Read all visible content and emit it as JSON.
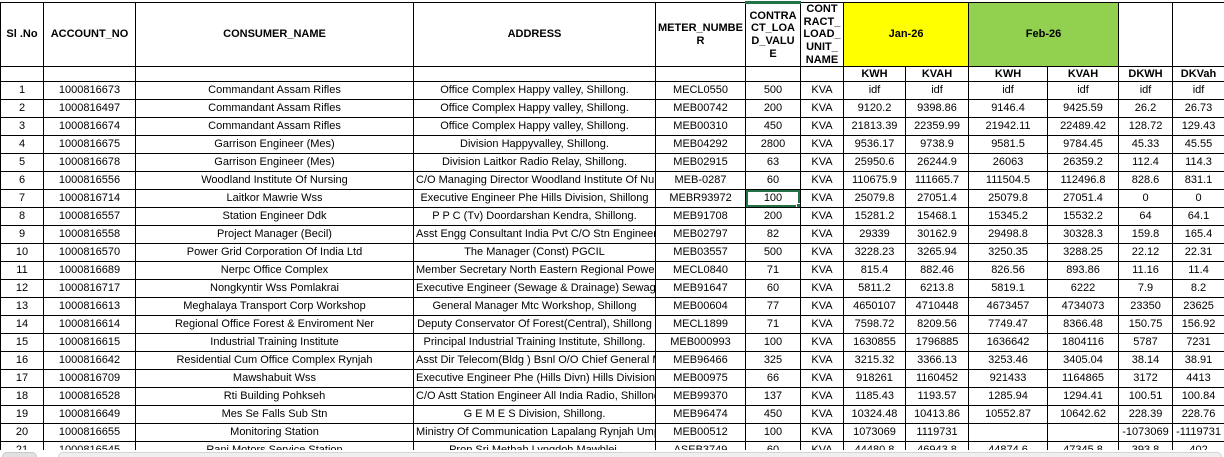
{
  "colors": {
    "jan_header_bg": "#FFFF00",
    "feb_header_bg": "#92D050",
    "selection_border": "#217346",
    "grid_border": "#000000"
  },
  "selection": {
    "row_index": 6,
    "column": "load"
  },
  "table": {
    "headers": {
      "sl": "Sl .No",
      "account": "ACCOUNT_NO",
      "consumer": "CONSUMER_NAME",
      "address": "ADDRESS",
      "meter": "METER_NUMBER",
      "load": "CONTRACT_LOAD_VALUE",
      "unit": "CONTRACT_LOAD_UNIT_NAME",
      "jan": "Jan-26",
      "feb": "Feb-26",
      "kwh": "KWH",
      "kvah": "KVAH",
      "dkwh": "DKWH",
      "dkvah": "DKVah"
    },
    "columns": [
      "sl",
      "account",
      "consumer",
      "address",
      "meter",
      "load",
      "unit",
      "jan_kwh",
      "jan_kvah",
      "feb_kwh",
      "feb_kvah",
      "dkwh",
      "dkvah"
    ],
    "rows": [
      {
        "sl": "1",
        "account": "1000816673",
        "consumer": "Commandant Assam Rifles",
        "address": "Office Complex Happy valley, Shillong.",
        "meter": "MECL0550",
        "load": "500",
        "unit": "KVA",
        "jan_kwh": "idf",
        "jan_kvah": "idf",
        "feb_kwh": "idf",
        "feb_kvah": "idf",
        "dkwh": "idf",
        "dkvah": "idf"
      },
      {
        "sl": "2",
        "account": "1000816497",
        "consumer": "Commandant Assam Rifles",
        "address": "Office Complex Happy valley, Shillong.",
        "meter": "MEB00742",
        "load": "200",
        "unit": "KVA",
        "jan_kwh": "9120.2",
        "jan_kvah": "9398.86",
        "feb_kwh": "9146.4",
        "feb_kvah": "9425.59",
        "dkwh": "26.2",
        "dkvah": "26.73"
      },
      {
        "sl": "3",
        "account": "1000816674",
        "consumer": "Commandant Assam Rifles",
        "address": "Office Complex Happy valley, Shillong.",
        "meter": "MEB00310",
        "load": "450",
        "unit": "KVA",
        "jan_kwh": "21813.39",
        "jan_kvah": "22359.99",
        "feb_kwh": "21942.11",
        "feb_kvah": "22489.42",
        "dkwh": "128.72",
        "dkvah": "129.43"
      },
      {
        "sl": "4",
        "account": "1000816675",
        "consumer": "Garrison Engineer (Mes)",
        "address": "Division Happyvalley, Shillong.",
        "meter": "MEB04292",
        "load": "2800",
        "unit": "KVA",
        "jan_kwh": "9536.17",
        "jan_kvah": "9738.9",
        "feb_kwh": "9581.5",
        "feb_kvah": "9784.45",
        "dkwh": "45.33",
        "dkvah": "45.55"
      },
      {
        "sl": "5",
        "account": "1000816678",
        "consumer": "Garrison Engineer (Mes)",
        "address": "Division Laitkor Radio Relay, Shillong.",
        "meter": "MEB02915",
        "load": "63",
        "unit": "KVA",
        "jan_kwh": "25950.6",
        "jan_kvah": "26244.9",
        "feb_kwh": "26063",
        "feb_kvah": "26359.2",
        "dkwh": "112.4",
        "dkvah": "114.3"
      },
      {
        "sl": "6",
        "account": "1000816556",
        "consumer": "Woodland Institute Of Nursing",
        "address": "C/O Managing Director Woodland Institute Of Nursing,",
        "meter": "MEB-0287",
        "load": "60",
        "unit": "KVA",
        "jan_kwh": "110675.9",
        "jan_kvah": "111665.7",
        "feb_kwh": "111504.5",
        "feb_kvah": "112496.8",
        "dkwh": "828.6",
        "dkvah": "831.1"
      },
      {
        "sl": "7",
        "account": "1000816714",
        "consumer": "Laitkor Mawrie Wss",
        "address": "Executive Engineer Phe Hills Division, Shillong",
        "meter": "MEBR93972",
        "load": "100",
        "unit": "KVA",
        "jan_kwh": "25079.8",
        "jan_kvah": "27051.4",
        "feb_kwh": "25079.8",
        "feb_kvah": "27051.4",
        "dkwh": "0",
        "dkvah": "0"
      },
      {
        "sl": "8",
        "account": "1000816557",
        "consumer": "Station Engineer Ddk",
        "address": "P P C (Tv) Doordarshan Kendra, Shillong.",
        "meter": "MEB91708",
        "load": "200",
        "unit": "KVA",
        "jan_kwh": "15281.2",
        "jan_kvah": "15468.1",
        "feb_kwh": "15345.2",
        "feb_kvah": "15532.2",
        "dkwh": "64",
        "dkvah": "64.1"
      },
      {
        "sl": "9",
        "account": "1000816558",
        "consumer": "Project Manager (Becil)",
        "address": "Asst Engg Consultant India Pvt C/O Stn Engineer Ddk Laitkor, Shillong. #",
        "meter": "MEB02797",
        "load": "82",
        "unit": "KVA",
        "jan_kwh": "29339",
        "jan_kvah": "30162.9",
        "feb_kwh": "29498.8",
        "feb_kvah": "30328.3",
        "dkwh": "159.8",
        "dkvah": "165.4"
      },
      {
        "sl": "10",
        "account": "1000816570",
        "consumer": "Power Grid Corporation Of India Ltd",
        "address": "The Manager (Const) PGCIL",
        "meter": "MEB03557",
        "load": "500",
        "unit": "KVA",
        "jan_kwh": "3228.23",
        "jan_kvah": "3265.94",
        "feb_kwh": "3250.35",
        "feb_kvah": "3288.25",
        "dkwh": "22.12",
        "dkvah": "22.31"
      },
      {
        "sl": "11",
        "account": "1000816689",
        "consumer": "Nerpc Office Complex",
        "address": "Member Secretary North Eastern Regional Power Committee, Shillong",
        "meter": "MECL0840",
        "load": "71",
        "unit": "KVA",
        "jan_kwh": "815.4",
        "jan_kvah": "882.46",
        "feb_kwh": "826.56",
        "feb_kvah": "893.86",
        "dkwh": "11.16",
        "dkvah": "11.4"
      },
      {
        "sl": "12",
        "account": "1000816717",
        "consumer": "Nongkyntir Wss Pomlakrai",
        "address": "Executive Engineer (Sewage & Drainage) Sewage& Drainage Division, Shillong",
        "meter": "MEB91647",
        "load": "60",
        "unit": "KVA",
        "jan_kwh": "5811.2",
        "jan_kvah": "6213.8",
        "feb_kwh": "5819.1",
        "feb_kvah": "6222",
        "dkwh": "7.9",
        "dkvah": "8.2"
      },
      {
        "sl": "13",
        "account": "1000816613",
        "consumer": "Meghalaya Transport Corp Workshop",
        "address": "General Manager Mtc Workshop, Shillong",
        "meter": "MEB00604",
        "load": "77",
        "unit": "KVA",
        "jan_kwh": "4650107",
        "jan_kvah": "4710448",
        "feb_kwh": "4673457",
        "feb_kvah": "4734073",
        "dkwh": "23350",
        "dkvah": "23625"
      },
      {
        "sl": "14",
        "account": "1000816614",
        "consumer": "Regional Office Forest & Enviroment Ner",
        "address": "Deputy Conservator Of Forest(Central), Shillong",
        "meter": "MECL1899",
        "load": "71",
        "unit": "KVA",
        "jan_kwh": "7598.72",
        "jan_kvah": "8209.56",
        "feb_kwh": "7749.47",
        "feb_kvah": "8366.48",
        "dkwh": "150.75",
        "dkvah": "156.92"
      },
      {
        "sl": "15",
        "account": "1000816615",
        "consumer": "Industrial Training Institute",
        "address": "Principal Industrial Training Institute, Shillong.",
        "meter": "MEB000993",
        "load": "100",
        "unit": "KVA",
        "jan_kwh": "1630855",
        "jan_kvah": "1796885",
        "feb_kwh": "1636642",
        "feb_kvah": "1804116",
        "dkwh": "5787",
        "dkvah": "7231"
      },
      {
        "sl": "16",
        "account": "1000816642",
        "consumer": "Residential Cum Office Complex Rynjah",
        "address": "Asst Dir Telecom(Bldg ) Bsnl O/O Chief General Manager Telecom",
        "meter": "MEB96466",
        "load": "325",
        "unit": "KVA",
        "jan_kwh": "3215.32",
        "jan_kvah": "3366.13",
        "feb_kwh": "3253.46",
        "feb_kvah": "3405.04",
        "dkwh": "38.14",
        "dkvah": "38.91"
      },
      {
        "sl": "17",
        "account": "1000816709",
        "consumer": "Mawshabuit Wss",
        "address": "Executive Engineer Phe (Hills Divn) Hills Division, Shillong.",
        "meter": "MEB00975",
        "load": "66",
        "unit": "KVA",
        "jan_kwh": "918261",
        "jan_kvah": "1160452",
        "feb_kwh": "921433",
        "feb_kvah": "1164865",
        "dkwh": "3172",
        "dkvah": "4413"
      },
      {
        "sl": "18",
        "account": "1000816528",
        "consumer": "Rti Building Pohkseh",
        "address": "C/O Astt Station Engineer All India Radio, Shillong.",
        "meter": "MEB99370",
        "load": "137",
        "unit": "KVA",
        "jan_kwh": "1185.43",
        "jan_kvah": "1193.57",
        "feb_kwh": "1285.94",
        "feb_kvah": "1294.41",
        "dkwh": "100.51",
        "dkvah": "100.84"
      },
      {
        "sl": "19",
        "account": "1000816649",
        "consumer": "Mes Se Falls Sub Stn",
        "address": "G E M E S Division, Shillong.",
        "meter": "MEB96474",
        "load": "450",
        "unit": "KVA",
        "jan_kwh": "10324.48",
        "jan_kvah": "10413.86",
        "feb_kwh": "10552.87",
        "feb_kvah": "10642.62",
        "dkwh": "228.39",
        "dkvah": "228.76"
      },
      {
        "sl": "20",
        "account": "1000816655",
        "consumer": "Monitoring Station",
        "address": "Ministry Of Communication Lapalang Rynjah Umpling, Shillong.",
        "meter": "MEB00512",
        "load": "100",
        "unit": "KVA",
        "jan_kwh": "1073069",
        "jan_kvah": "1119731",
        "feb_kwh": "",
        "feb_kvah": "",
        "dkwh": "-1073069",
        "dkvah": "-1119731"
      },
      {
        "sl": "21",
        "account": "1000816545",
        "consumer": "Rani Motors Service Station",
        "address": "Prop Sri Metbah Lyngdoh Mawblei,",
        "meter": "ASEB3749",
        "load": "60",
        "unit": "KVA",
        "jan_kwh": "44480.8",
        "jan_kvah": "46943.8",
        "feb_kwh": "44874.6",
        "feb_kvah": "47345.8",
        "dkwh": "393.8",
        "dkvah": "402"
      }
    ]
  }
}
